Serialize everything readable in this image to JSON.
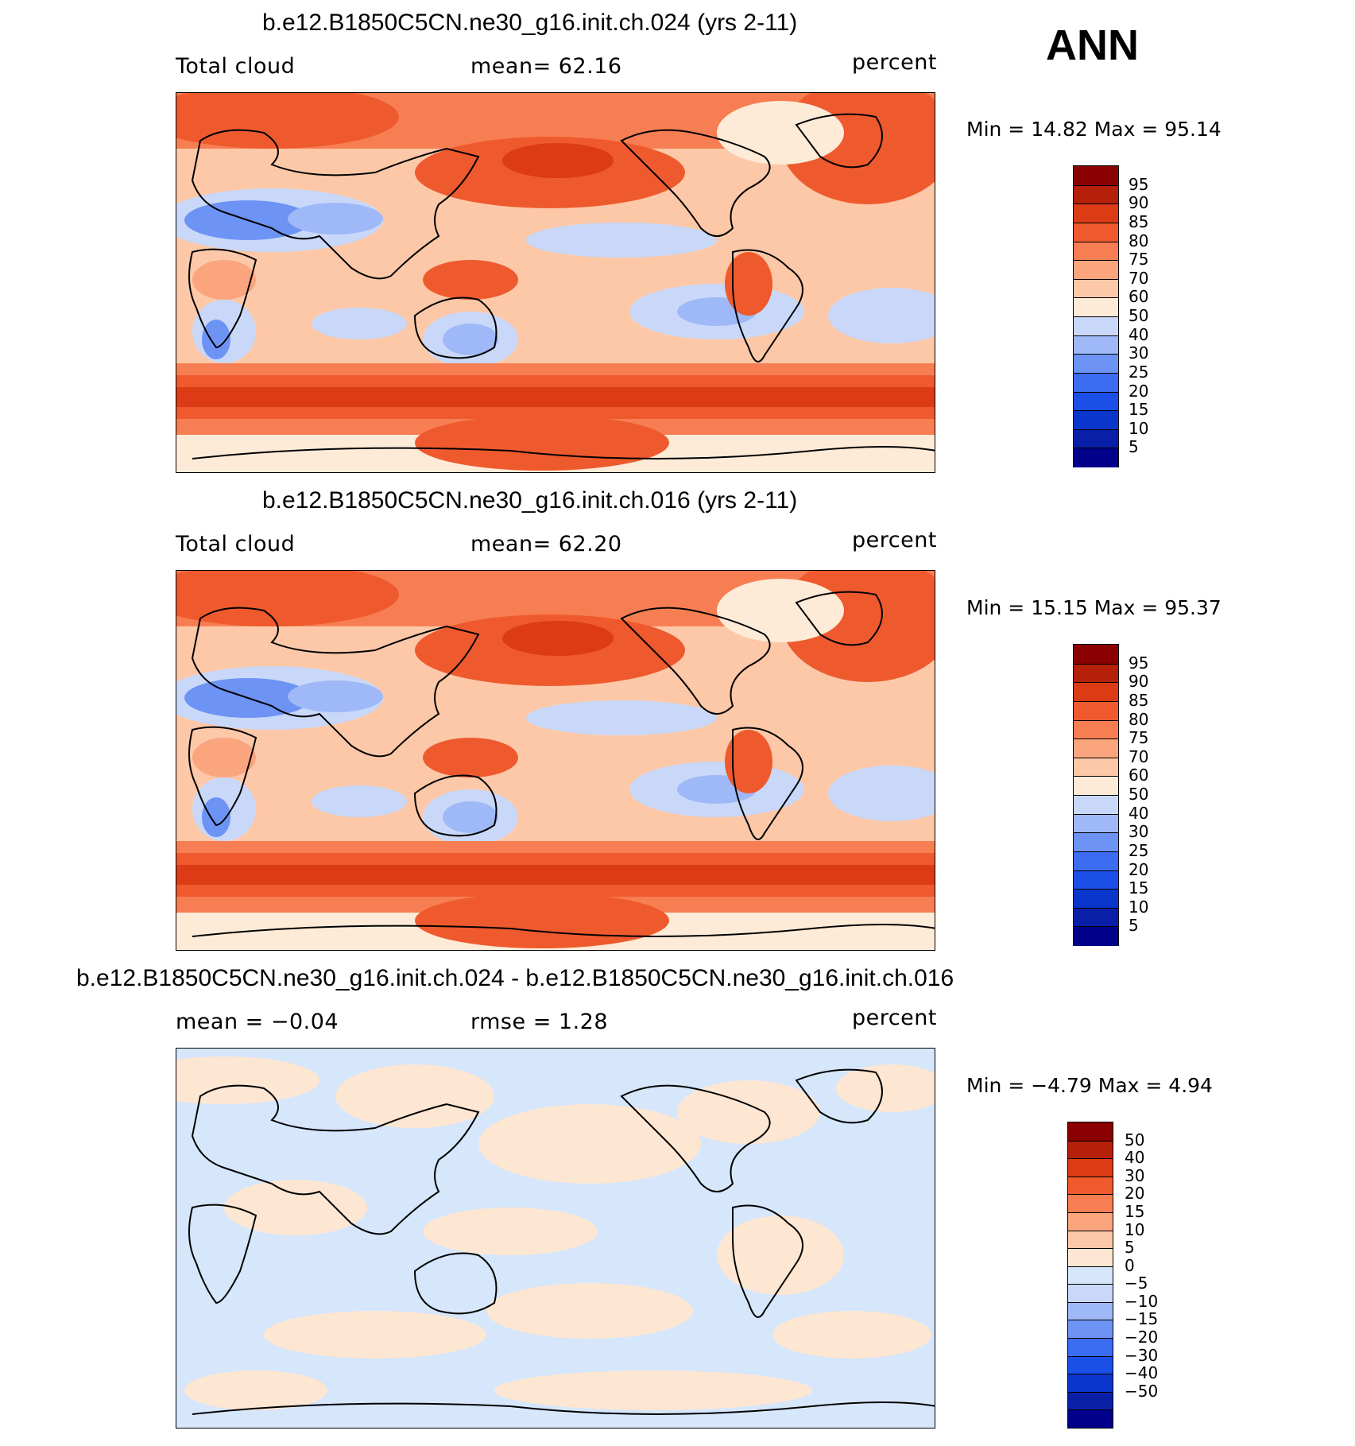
{
  "season": "ANN",
  "panels": [
    {
      "title": "b.e12.B1850C5CN.ne30_g16.init.ch.024 (yrs 2-11)",
      "left_label": "Total cloud",
      "center_label": "mean=   62.16",
      "units": "percent",
      "minmax": "Min =   14.82 Max =   95.14",
      "palette": [
        "#00008b",
        "#0a1fa8",
        "#0a36cc",
        "#1a4fe8",
        "#3b6cf2",
        "#6d93f5",
        "#9fb8f7",
        "#c9d8f8",
        "#fdebd8",
        "#fcc8a8",
        "#fba57f",
        "#f77e52",
        "#ee5a2e",
        "#dc3b15",
        "#b5200a",
        "#8b0000"
      ],
      "labels": [
        "95",
        "90",
        "85",
        "80",
        "75",
        "70",
        "60",
        "50",
        "40",
        "30",
        "25",
        "20",
        "15",
        "10",
        "5"
      ]
    },
    {
      "title": "b.e12.B1850C5CN.ne30_g16.init.ch.016 (yrs 2-11)",
      "left_label": "Total cloud",
      "center_label": "mean=   62.20",
      "units": "percent",
      "minmax": "Min =   15.15 Max =   95.37",
      "palette": [
        "#00008b",
        "#0a1fa8",
        "#0a36cc",
        "#1a4fe8",
        "#3b6cf2",
        "#6d93f5",
        "#9fb8f7",
        "#c9d8f8",
        "#fdebd8",
        "#fcc8a8",
        "#fba57f",
        "#f77e52",
        "#ee5a2e",
        "#dc3b15",
        "#b5200a",
        "#8b0000"
      ],
      "labels": [
        "95",
        "90",
        "85",
        "80",
        "75",
        "70",
        "60",
        "50",
        "40",
        "30",
        "25",
        "20",
        "15",
        "10",
        "5"
      ]
    },
    {
      "title": "b.e12.B1850C5CN.ne30_g16.init.ch.024 - b.e12.B1850C5CN.ne30_g16.init.ch.016",
      "left_label": "mean =   −0.04",
      "center_label": "rmse =    1.28",
      "units": "percent",
      "minmax": "Min =   −4.79 Max =    4.94",
      "palette": [
        "#00008b",
        "#0a1fa8",
        "#0a36cc",
        "#1a4fe8",
        "#3b6cf2",
        "#6d93f5",
        "#9fb8f7",
        "#c9d8f8",
        "#d6e6fb",
        "#fde6d2",
        "#fcc8a8",
        "#fba57f",
        "#f77e52",
        "#ee5a2e",
        "#dc3b15",
        "#b5200a",
        "#8b0000"
      ],
      "labels": [
        "50",
        "40",
        "30",
        "20",
        "15",
        "10",
        "5",
        "0",
        "−5",
        "−10",
        "−15",
        "−20",
        "−30",
        "−40",
        "−50"
      ]
    }
  ]
}
